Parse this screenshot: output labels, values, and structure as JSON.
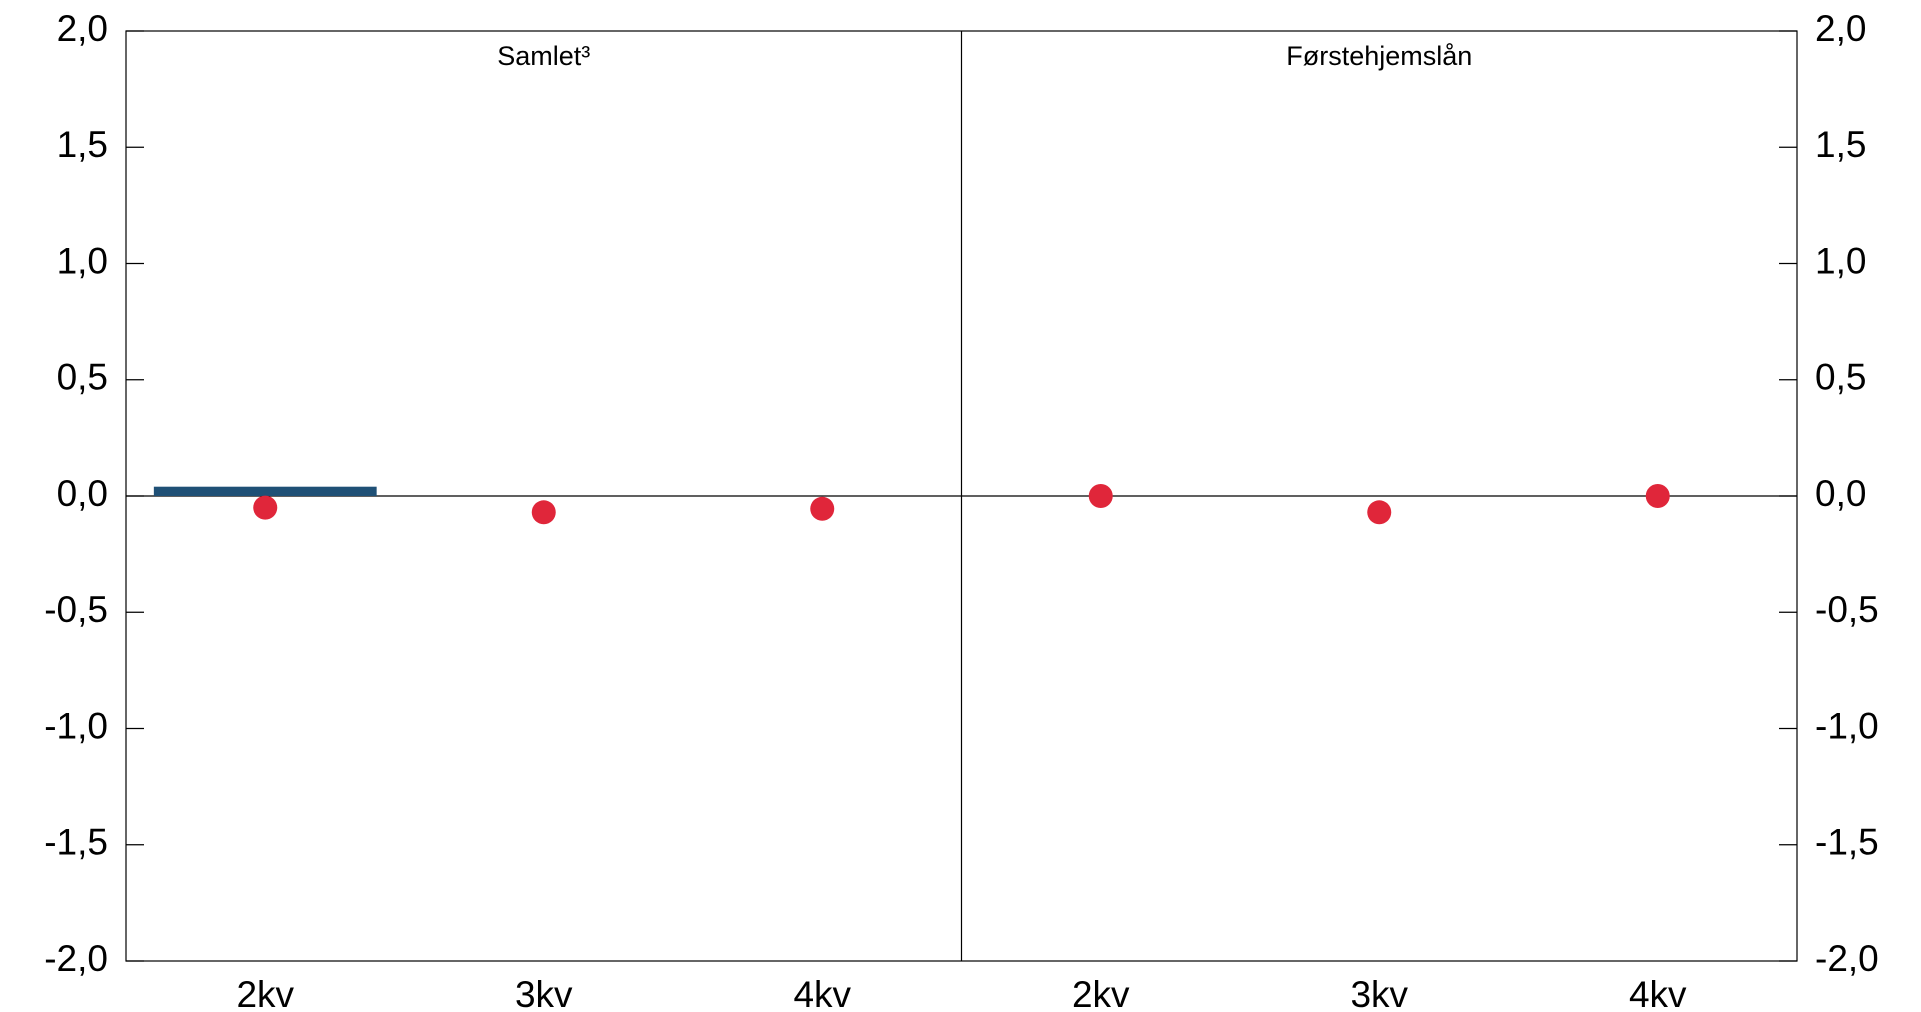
{
  "chart_data": [
    {
      "type": "bar",
      "title": "Samlet³",
      "categories": [
        "2kv",
        "3kv",
        "4kv"
      ],
      "series": [
        {
          "type": "bar",
          "color": "#1f5076",
          "values": [
            0.04,
            0,
            0
          ]
        },
        {
          "type": "scatter",
          "color": "#e0263a",
          "values": [
            -0.05,
            -0.07,
            -0.055
          ]
        }
      ],
      "ylim": [
        -2,
        2
      ],
      "yticks": [
        {
          "value": -2,
          "label": "-2,0"
        },
        {
          "value": -1.5,
          "label": "-1,5"
        },
        {
          "value": -1,
          "label": "-1,0"
        },
        {
          "value": -0.5,
          "label": "-0,5"
        },
        {
          "value": 0,
          "label": "0,0"
        },
        {
          "value": 0.5,
          "label": "0,5"
        },
        {
          "value": 1,
          "label": "1,0"
        },
        {
          "value": 1.5,
          "label": "1,5"
        },
        {
          "value": 2,
          "label": "2,0"
        }
      ]
    },
    {
      "type": "bar",
      "title": "Førstehjemslån",
      "categories": [
        "2kv",
        "3kv",
        "4kv"
      ],
      "series": [
        {
          "type": "bar",
          "color": "#1f5076",
          "values": [
            0,
            0,
            0
          ]
        },
        {
          "type": "scatter",
          "color": "#e0263a",
          "values": [
            0,
            -0.07,
            0
          ]
        }
      ],
      "ylim": [
        -2,
        2
      ],
      "yticks": [
        {
          "value": -2,
          "label": "-2,0"
        },
        {
          "value": -1.5,
          "label": "-1,5"
        },
        {
          "value": -1,
          "label": "-1,0"
        },
        {
          "value": -0.5,
          "label": "-0,5"
        },
        {
          "value": 0,
          "label": "0,0"
        },
        {
          "value": 0.5,
          "label": "0,5"
        },
        {
          "value": 1,
          "label": "1,0"
        },
        {
          "value": 1.5,
          "label": "1,5"
        },
        {
          "value": 2,
          "label": "2,0"
        }
      ]
    }
  ]
}
